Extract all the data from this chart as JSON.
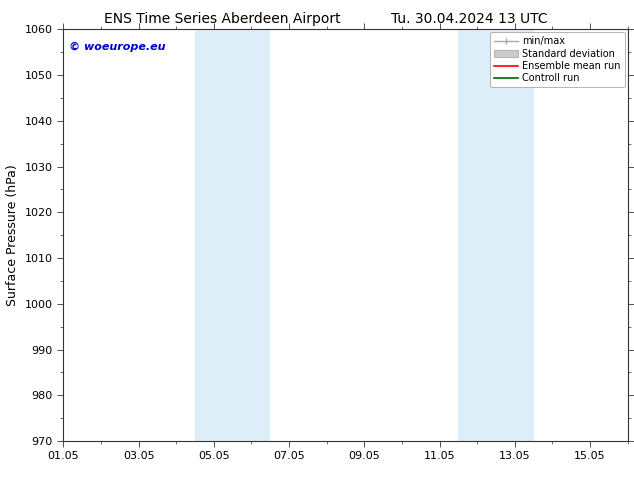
{
  "title_left": "ENS Time Series Aberdeen Airport",
  "title_right": "Tu. 30.04.2024 13 UTC",
  "ylabel": "Surface Pressure (hPa)",
  "ylim": [
    970,
    1060
  ],
  "yticks": [
    970,
    980,
    990,
    1000,
    1010,
    1020,
    1030,
    1040,
    1050,
    1060
  ],
  "xlim": [
    0,
    15
  ],
  "xtick_labels": [
    "01.05",
    "03.05",
    "05.05",
    "07.05",
    "09.05",
    "11.05",
    "13.05",
    "15.05"
  ],
  "xtick_positions": [
    0,
    2,
    4,
    6,
    8,
    10,
    12,
    14
  ],
  "shaded_bands": [
    {
      "x_start": 3.5,
      "x_end": 4.5,
      "color": "#ddeef8"
    },
    {
      "x_start": 4.5,
      "x_end": 5.5,
      "color": "#ddeef8"
    },
    {
      "x_start": 10.5,
      "x_end": 11.5,
      "color": "#ddeef8"
    },
    {
      "x_start": 11.5,
      "x_end": 12.5,
      "color": "#ddeef8"
    }
  ],
  "watermark_text": "© woeurope.eu",
  "watermark_color": "#0000cc",
  "bg_color": "#ffffff",
  "title_fontsize": 10,
  "tick_fontsize": 8,
  "ylabel_fontsize": 9,
  "legend_fontsize": 7
}
